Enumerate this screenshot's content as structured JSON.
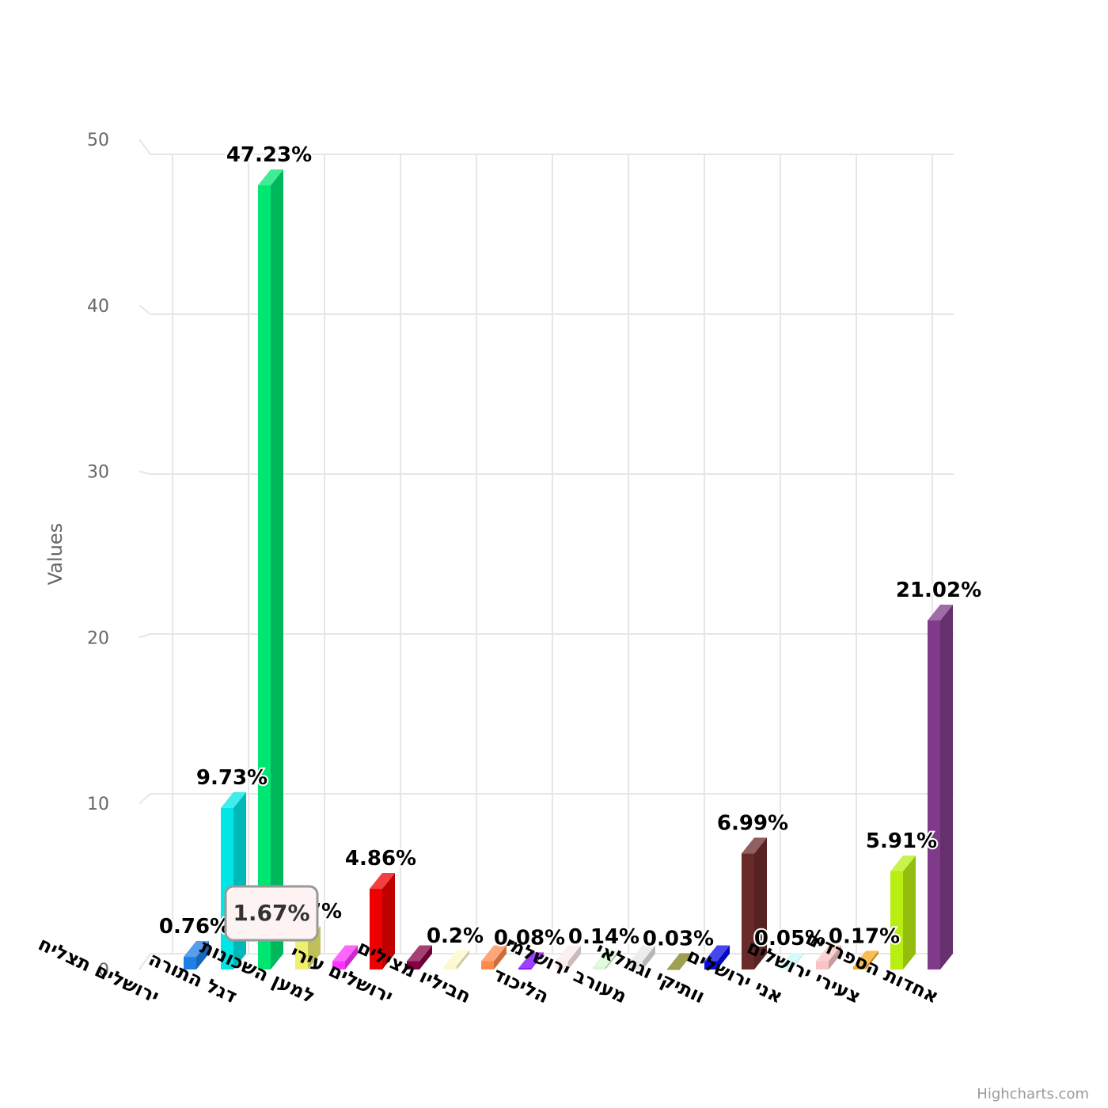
{
  "chart_data": {
    "type": "bar",
    "ylabel": "Values",
    "ylim": [
      0,
      50
    ],
    "yticks": [
      0,
      10,
      20,
      30,
      40,
      50
    ],
    "grid": true,
    "legend": "none",
    "three_d": true,
    "categories": [
      "ירושלים תצליח",
      "דגל התורה",
      "למען השכונות",
      "ירושלים עירי",
      "חביליו מצילים",
      "הליכוד",
      "מעורב ירושלמי",
      "וותיקי וגמלאי",
      "אני ירושלים",
      "צעירי ירושלים",
      "אחדות הספרדים"
    ],
    "bars": [
      {
        "value": 0.76,
        "label": "0.76%",
        "color": "#1e7fe6"
      },
      {
        "value": 9.73,
        "label": "9.73%",
        "color": "#00e6e6"
      },
      {
        "value": 47.23,
        "label": "47.23%",
        "color": "#00e673"
      },
      {
        "value": 1.67,
        "label": "1.67%",
        "color": "#f0f070"
      },
      {
        "value": 0.5,
        "label": "",
        "color": "#ff33ff"
      },
      {
        "value": 4.86,
        "label": "4.86%",
        "color": "#ee0000"
      },
      {
        "value": 0.5,
        "label": "",
        "color": "#880044"
      },
      {
        "value": 0.2,
        "label": "0.2%",
        "color": "#fcf6c8"
      },
      {
        "value": 0.5,
        "label": "",
        "color": "#ff884d"
      },
      {
        "value": 0.08,
        "label": "0.08%",
        "color": "#8000ff"
      },
      {
        "value": 0.5,
        "label": "",
        "color": "#fbeaea"
      },
      {
        "value": 0.14,
        "label": "0.14%",
        "color": "#d7f7d0"
      },
      {
        "value": 0.5,
        "label": "",
        "color": "#e6e6e6"
      },
      {
        "value": 0.03,
        "label": "0.03%",
        "color": "#808019"
      },
      {
        "value": 0.5,
        "label": "",
        "color": "#0a0aee"
      },
      {
        "value": 6.99,
        "label": "6.99%",
        "color": "#6b2a2a"
      },
      {
        "value": 0.05,
        "label": "0.05%",
        "color": "#c8f8fb"
      },
      {
        "value": 0.5,
        "label": "",
        "color": "#f8c3c3"
      },
      {
        "value": 0.17,
        "label": "0.17%",
        "color": "#f7a81a"
      },
      {
        "value": 5.91,
        "label": "5.91%",
        "color": "#b8ee10"
      },
      {
        "value": 21.02,
        "label": "21.02%",
        "color": "#7f3b8a"
      }
    ],
    "tooltip": {
      "text": "1.67%",
      "bar_index": 3
    }
  },
  "credits": "Highcharts.com"
}
